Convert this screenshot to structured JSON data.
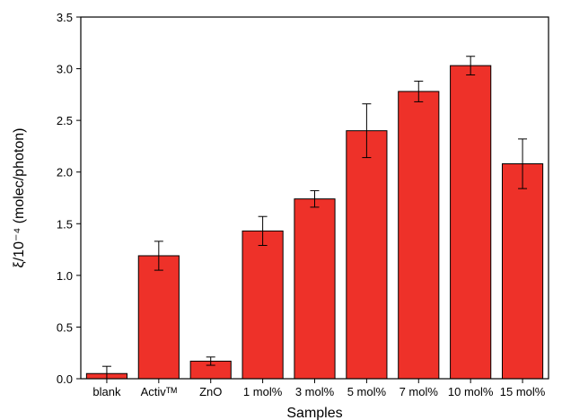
{
  "chart_data": {
    "type": "bar",
    "title": "",
    "xlabel": "Samples",
    "ylabel": "ξ/10⁻⁴ (molec/photon)",
    "categories": [
      "blank",
      "Activᵀᴹ",
      "ZnO",
      "1 mol%",
      "3 mol%",
      "5 mol%",
      "7 mol%",
      "10 mol%",
      "15 mol%"
    ],
    "values": [
      0.05,
      1.19,
      0.17,
      1.43,
      1.74,
      2.4,
      2.78,
      3.03,
      2.08
    ],
    "error": [
      0.07,
      0.14,
      0.04,
      0.14,
      0.08,
      0.26,
      0.1,
      0.09,
      0.24
    ],
    "ylim": [
      0,
      3.5
    ],
    "yticks": [
      "0.0",
      "0.5",
      "1.0",
      "1.5",
      "2.0",
      "2.5",
      "3.0",
      "3.5"
    ],
    "bar_color": "#ee3129",
    "grid": false,
    "legend": "none"
  }
}
